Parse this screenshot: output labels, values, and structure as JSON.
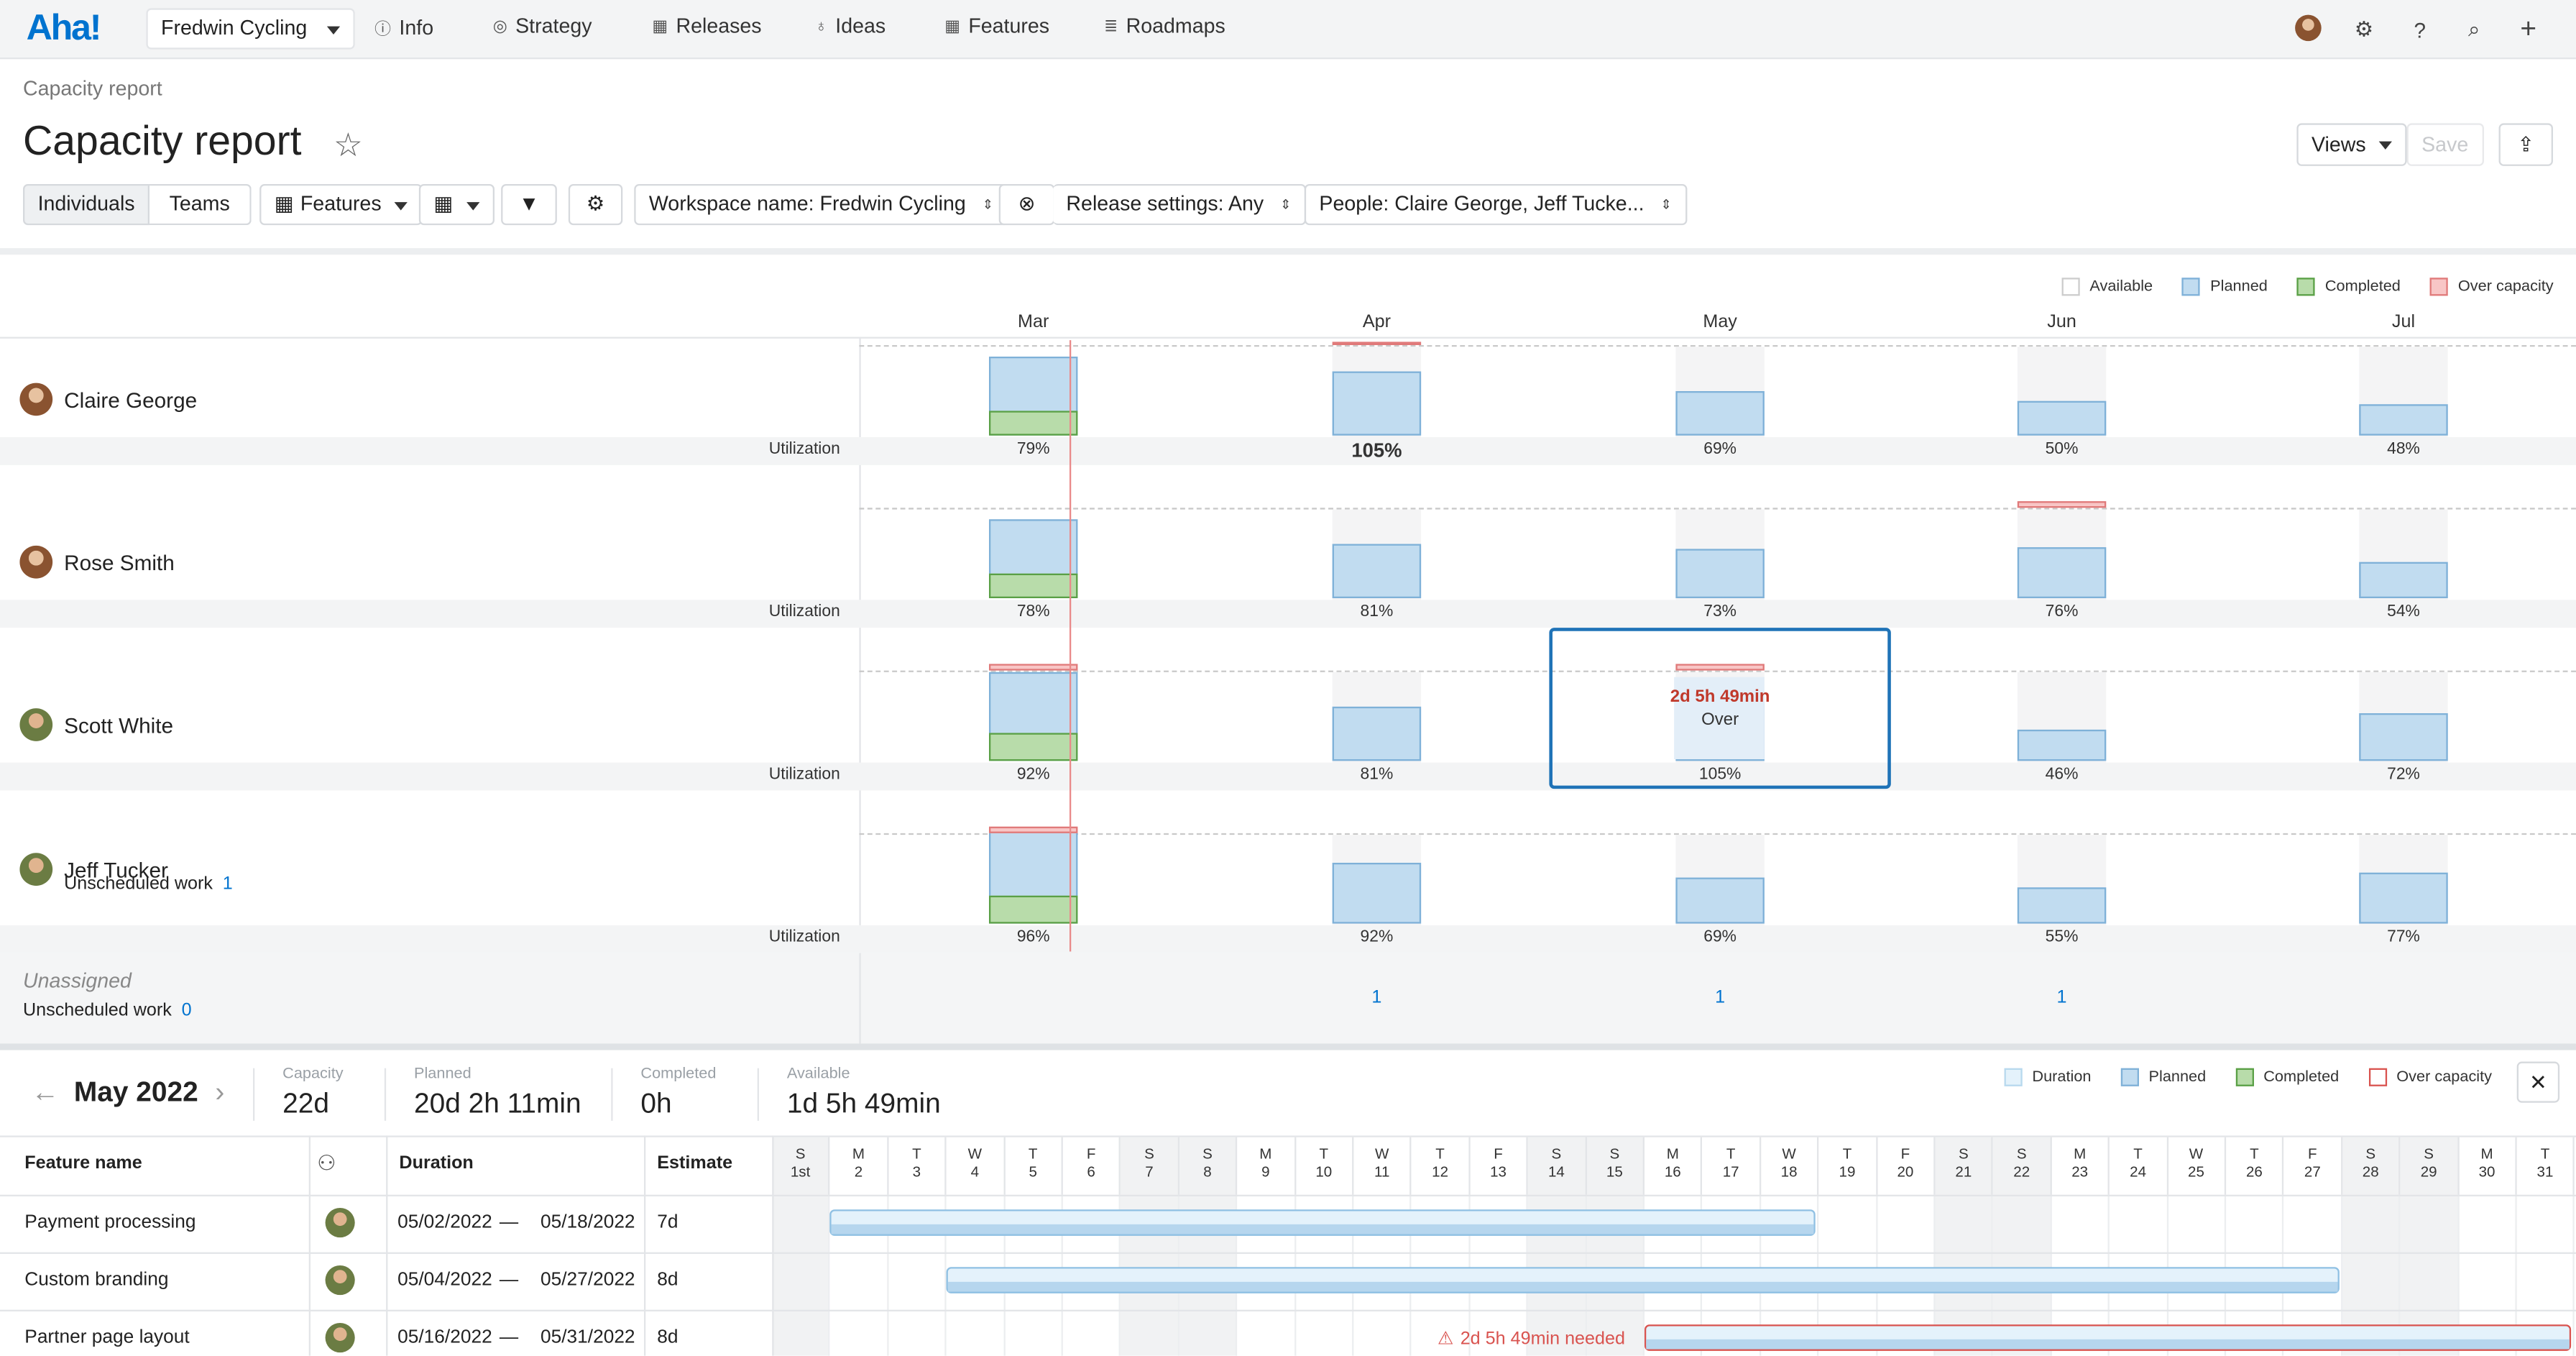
{
  "app": {
    "logo": "Aha!",
    "workspace": "Fredwin Cycling",
    "nav": [
      {
        "label": "Info",
        "icon": "info-icon",
        "glyph": "ⓘ"
      },
      {
        "label": "Strategy",
        "icon": "target-icon",
        "glyph": "◎"
      },
      {
        "label": "Releases",
        "icon": "calendar-icon",
        "glyph": "▦"
      },
      {
        "label": "Ideas",
        "icon": "lightbulb-icon",
        "glyph": "♁"
      },
      {
        "label": "Features",
        "icon": "grid-icon",
        "glyph": "▦"
      },
      {
        "label": "Roadmaps",
        "icon": "roadmap-icon",
        "glyph": "≣"
      }
    ]
  },
  "page": {
    "breadcrumb": "Capacity report",
    "title": "Capacity report",
    "views": "Views",
    "save": "Save"
  },
  "toolbar": {
    "individuals": "Individuals",
    "teams": "Teams",
    "features": "Features",
    "filters": [
      "Workspace name: Fredwin Cycling",
      "Release settings: Any",
      "People: Claire George, Jeff Tucke..."
    ]
  },
  "legend": [
    "Available",
    "Planned",
    "Completed",
    "Over capacity"
  ],
  "months": [
    "Mar",
    "Apr",
    "May",
    "Jun",
    "Jul"
  ],
  "utilization_label": "Utilization",
  "people": [
    {
      "name": "Claire George",
      "util": [
        "79%",
        "105%",
        "69%",
        "50%",
        "48%"
      ],
      "planned": [
        0.62,
        0.72,
        0.5,
        0.38,
        0.35
      ],
      "completed": [
        0.27,
        0,
        0,
        0,
        0
      ],
      "over": [
        0,
        0.06,
        0,
        0,
        0
      ]
    },
    {
      "name": "Rose Smith",
      "util": [
        "78%",
        "81%",
        "73%",
        "76%",
        "54%"
      ],
      "planned": [
        0.62,
        0.61,
        0.55,
        0.57,
        0.41
      ],
      "completed": [
        0.27,
        0,
        0,
        0,
        0
      ],
      "over": [
        0,
        0,
        0,
        0.13,
        0
      ]
    },
    {
      "name": "Scott White",
      "util": [
        "92%",
        "81%",
        "105%",
        "46%",
        "72%"
      ],
      "planned": [
        0.69,
        0.61,
        0.66,
        0.35,
        0.54
      ],
      "completed": [
        0.31,
        0,
        0,
        0,
        0
      ],
      "over": [
        0.13,
        0,
        0.13,
        0,
        0
      ]
    },
    {
      "name": "Jeff Tucker",
      "unscheduled_label": "Unscheduled work",
      "unscheduled": "1",
      "util": [
        "96%",
        "92%",
        "69%",
        "55%",
        "77%"
      ],
      "planned": [
        0.72,
        0.69,
        0.52,
        0.41,
        0.58
      ],
      "completed": [
        0.31,
        0,
        0,
        0,
        0
      ],
      "over": [
        0.13,
        0,
        0,
        0,
        0
      ]
    }
  ],
  "tooltip": {
    "amount": "2d 5h 49min",
    "label": "Over"
  },
  "unassigned": {
    "label": "Unassigned",
    "unscheduled_label": "Unscheduled work",
    "unscheduled": "0",
    "counts": [
      "1",
      "1",
      "1"
    ]
  },
  "bottom": {
    "month": "May 2022",
    "stats": [
      {
        "label": "Capacity",
        "value": "22d"
      },
      {
        "label": "Planned",
        "value": "20d 2h 11min"
      },
      {
        "label": "Completed",
        "value": "0h"
      },
      {
        "label": "Available",
        "value": "1d 5h 49min"
      }
    ],
    "legend": [
      "Duration",
      "Planned",
      "Completed",
      "Over capacity"
    ],
    "columns": [
      "Feature name",
      "Duration",
      "Estimate"
    ],
    "days": [
      [
        "S",
        "1st"
      ],
      [
        "M",
        "2"
      ],
      [
        "T",
        "3"
      ],
      [
        "W",
        "4"
      ],
      [
        "T",
        "5"
      ],
      [
        "F",
        "6"
      ],
      [
        "S",
        "7"
      ],
      [
        "S",
        "8"
      ],
      [
        "M",
        "9"
      ],
      [
        "T",
        "10"
      ],
      [
        "W",
        "11"
      ],
      [
        "T",
        "12"
      ],
      [
        "F",
        "13"
      ],
      [
        "S",
        "14"
      ],
      [
        "S",
        "15"
      ],
      [
        "M",
        "16"
      ],
      [
        "T",
        "17"
      ],
      [
        "W",
        "18"
      ],
      [
        "T",
        "19"
      ],
      [
        "F",
        "20"
      ],
      [
        "S",
        "21"
      ],
      [
        "S",
        "22"
      ],
      [
        "M",
        "23"
      ],
      [
        "T",
        "24"
      ],
      [
        "W",
        "25"
      ],
      [
        "T",
        "26"
      ],
      [
        "F",
        "27"
      ],
      [
        "S",
        "28"
      ],
      [
        "S",
        "29"
      ],
      [
        "M",
        "30"
      ],
      [
        "T",
        "31"
      ]
    ],
    "features": [
      {
        "name": "Payment processing",
        "start": "05/02/2022",
        "end": "05/18/2022",
        "estimate": "7d"
      },
      {
        "name": "Custom branding",
        "start": "05/04/2022",
        "end": "05/27/2022",
        "estimate": "8d"
      },
      {
        "name": "Partner page layout",
        "start": "05/16/2022",
        "end": "05/31/2022",
        "estimate": "8d",
        "warning": "2d 5h 49min needed"
      }
    ]
  },
  "colors": {
    "accent": "#0073cf",
    "planned": "#c1dcf0",
    "completed": "#b8dcaa",
    "over": "#f8c6c6",
    "today": "#e05a5a"
  }
}
